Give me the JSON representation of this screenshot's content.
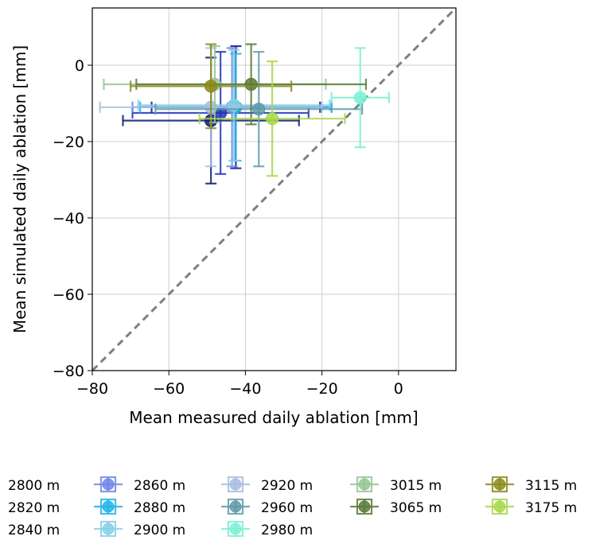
{
  "chart_data": {
    "type": "scatter",
    "title": "",
    "xlabel": "Mean measured daily ablation [mm]",
    "ylabel": "Mean simulated daily ablation [mm]",
    "xlim": [
      -80,
      15
    ],
    "ylim": [
      -80,
      15
    ],
    "xticks": [
      "−80",
      "−60",
      "−40",
      "−20",
      "0"
    ],
    "yticks": [
      "0",
      "−20",
      "−40",
      "−60",
      "−80"
    ],
    "xtick_values": [
      -80,
      -60,
      -40,
      -20,
      0
    ],
    "ytick_values": [
      0,
      -20,
      -40,
      -60,
      -80
    ],
    "grid": true,
    "reference_line": "1:1 dashed",
    "legend_placement": "bottom",
    "series": [
      {
        "name": "2800 m",
        "color": "#0d1f6e",
        "x": -49,
        "y": -14.5,
        "xerr": 23,
        "yerr": 16.5
      },
      {
        "name": "2820 m",
        "color": "#1f36b8",
        "x": -46.5,
        "y": -12.5,
        "xerr": 23,
        "yerr": 16
      },
      {
        "name": "2840 m",
        "color": "#0b1a8c",
        "x": -42.5,
        "y": -11,
        "xerr": 22,
        "yerr": 16
      },
      {
        "name": "2860 m",
        "color": "#6f86e6",
        "x": -43.5,
        "y": -11,
        "xerr": 26,
        "yerr": 15.5
      },
      {
        "name": "2880 m",
        "color": "#1eb4e8",
        "x": -42.5,
        "y": -11,
        "xerr": 25,
        "yerr": 14
      },
      {
        "name": "2900 m",
        "color": "#86cfe6",
        "x": -43,
        "y": -10.5,
        "xerr": 25,
        "yerr": 14.5
      },
      {
        "name": "2920 m",
        "color": "#a8bede",
        "x": -49,
        "y": -11,
        "xerr": 29,
        "yerr": 15.5
      },
      {
        "name": "2960 m",
        "color": "#5f9aa8",
        "x": -36.5,
        "y": -11.5,
        "xerr": 27,
        "yerr": 15
      },
      {
        "name": "2980 m",
        "color": "#7df0d2",
        "x": -10,
        "y": -8.5,
        "xerr": 7.5,
        "yerr": 13
      },
      {
        "name": "3015 m",
        "color": "#96c596",
        "x": -48,
        "y": -5,
        "xerr": 29,
        "yerr": 10
      },
      {
        "name": "3065 m",
        "color": "#587a38",
        "x": -38.5,
        "y": -5,
        "xerr": 30,
        "yerr": 10.5
      },
      {
        "name": "3115 m",
        "color": "#8c8a1c",
        "x": -49,
        "y": -5.5,
        "xerr": 21,
        "yerr": 11
      },
      {
        "name": "3175 m",
        "color": "#a8d84a",
        "x": -33,
        "y": -14,
        "xerr": 19,
        "yerr": 15
      }
    ]
  }
}
